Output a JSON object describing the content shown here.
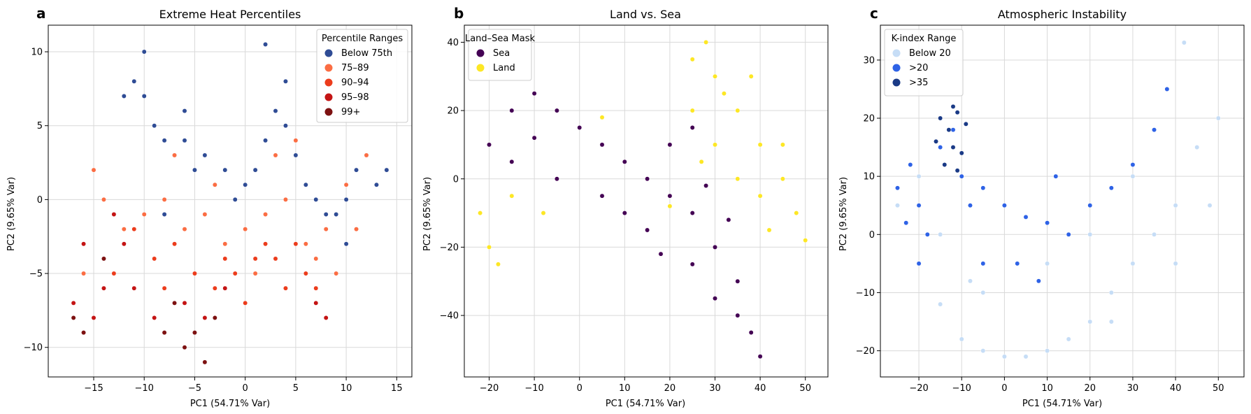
{
  "chart_data": [
    {
      "panel": "a",
      "type": "scatter",
      "title": "Extreme Heat Percentiles",
      "xlabel": "PC1 (54.71% Var)",
      "ylabel": "PC2 (9.65% Var)",
      "xlim": [
        -19.5,
        16.5
      ],
      "ylim": [
        -12,
        11.8
      ],
      "xticks": [
        -15,
        -10,
        -5,
        0,
        5,
        10,
        15
      ],
      "yticks": [
        -10,
        -5,
        0,
        5,
        10
      ],
      "xtick_labels": [
        "−15",
        "−10",
        "−5",
        "0",
        "5",
        "10",
        "15"
      ],
      "ytick_labels": [
        "−10",
        "−5",
        "0",
        "5",
        "10"
      ],
      "grid": true,
      "legend_title": "Percentile Ranges",
      "legend_position": "top-right",
      "series": [
        {
          "name": "Below 75th",
          "color": "#2f4c95",
          "points": [
            [
              -12,
              7
            ],
            [
              -11,
              8
            ],
            [
              -10,
              7
            ],
            [
              -9,
              5
            ],
            [
              -8,
              4
            ],
            [
              -7,
              3
            ],
            [
              -6,
              4
            ],
            [
              -5,
              2
            ],
            [
              -4,
              3
            ],
            [
              -3,
              1
            ],
            [
              -2,
              2
            ],
            [
              -1,
              0
            ],
            [
              0,
              1
            ],
            [
              1,
              2
            ],
            [
              2,
              4
            ],
            [
              3,
              6
            ],
            [
              4,
              5
            ],
            [
              5,
              3
            ],
            [
              6,
              1
            ],
            [
              7,
              0
            ],
            [
              8,
              -1
            ],
            [
              9,
              -1
            ],
            [
              10,
              0
            ],
            [
              11,
              2
            ],
            [
              12,
              3
            ],
            [
              13,
              1
            ],
            [
              14,
              2
            ],
            [
              -10,
              10
            ],
            [
              -8,
              -1
            ],
            [
              -13,
              -1
            ],
            [
              2,
              10.5
            ],
            [
              -6,
              6
            ],
            [
              4,
              8
            ],
            [
              10,
              -3
            ]
          ]
        },
        {
          "name": "75–89",
          "color": "#fb6d43",
          "points": [
            [
              -15,
              2
            ],
            [
              -16,
              -5
            ],
            [
              -14,
              0
            ],
            [
              -12,
              -2
            ],
            [
              -10,
              -1
            ],
            [
              -8,
              0
            ],
            [
              -6,
              -2
            ],
            [
              -4,
              -1
            ],
            [
              -2,
              -3
            ],
            [
              0,
              -2
            ],
            [
              2,
              -1
            ],
            [
              4,
              0
            ],
            [
              6,
              -3
            ],
            [
              8,
              -2
            ],
            [
              10,
              1
            ],
            [
              12,
              3
            ],
            [
              5,
              4
            ],
            [
              3,
              3
            ],
            [
              -7,
              3
            ],
            [
              1,
              -5
            ],
            [
              7,
              -4
            ],
            [
              9,
              -5
            ],
            [
              -3,
              1
            ],
            [
              11,
              -2
            ]
          ]
        },
        {
          "name": "90–94",
          "color": "#ec3c1c",
          "points": [
            [
              -11,
              -2
            ],
            [
              -9,
              -4
            ],
            [
              -7,
              -3
            ],
            [
              -5,
              -5
            ],
            [
              -3,
              -6
            ],
            [
              -1,
              -5
            ],
            [
              1,
              -4
            ],
            [
              3,
              -4
            ],
            [
              5,
              -3
            ],
            [
              6,
              -5
            ],
            [
              -13,
              -5
            ],
            [
              -8,
              -6
            ],
            [
              0,
              -7
            ],
            [
              2,
              -3
            ],
            [
              4,
              -6
            ],
            [
              7,
              -6
            ],
            [
              -2,
              -4
            ]
          ]
        },
        {
          "name": "95–98",
          "color": "#c41414",
          "points": [
            [
              -17,
              -7
            ],
            [
              -15,
              -8
            ],
            [
              -14,
              -6
            ],
            [
              -13,
              -1
            ],
            [
              -12,
              -3
            ],
            [
              -6,
              -7
            ],
            [
              -4,
              -8
            ],
            [
              -2,
              -6
            ],
            [
              7,
              -7
            ],
            [
              8,
              -8
            ],
            [
              -9,
              -8
            ],
            [
              -16,
              -3
            ],
            [
              -11,
              -6
            ]
          ]
        },
        {
          "name": "99+",
          "color": "#7d1111",
          "points": [
            [
              -17,
              -8
            ],
            [
              -16,
              -9
            ],
            [
              -8,
              -9
            ],
            [
              -6,
              -10
            ],
            [
              -4,
              -11
            ],
            [
              -5,
              -9
            ],
            [
              -14,
              -4
            ],
            [
              -7,
              -7
            ],
            [
              -3,
              -8
            ]
          ]
        }
      ]
    },
    {
      "panel": "b",
      "type": "scatter",
      "title": "Land vs. Sea",
      "xlabel": "PC1 (54.71% Var)",
      "ylabel": "PC2 (9.65% Var)",
      "xlim": [
        -25.5,
        55
      ],
      "ylim": [
        -58,
        45
      ],
      "xticks": [
        -20,
        -10,
        0,
        10,
        20,
        30,
        40,
        50
      ],
      "yticks": [
        -40,
        -20,
        0,
        20,
        40
      ],
      "xtick_labels": [
        "−20",
        "−10",
        "0",
        "10",
        "20",
        "30",
        "40",
        "50"
      ],
      "ytick_labels": [
        "−40",
        "−20",
        "0",
        "20",
        "40"
      ],
      "grid": true,
      "legend_title": "Land–Sea Mask",
      "legend_position": "top-left",
      "series": [
        {
          "name": "Sea",
          "color": "#440154",
          "points": [
            [
              -20,
              10
            ],
            [
              -15,
              20
            ],
            [
              -10,
              25
            ],
            [
              -5,
              20
            ],
            [
              0,
              15
            ],
            [
              5,
              10
            ],
            [
              10,
              5
            ],
            [
              15,
              0
            ],
            [
              20,
              -5
            ],
            [
              25,
              -10
            ],
            [
              30,
              -20
            ],
            [
              35,
              -30
            ],
            [
              38,
              -45
            ],
            [
              40,
              -52
            ],
            [
              -15,
              5
            ],
            [
              -5,
              0
            ],
            [
              5,
              -5
            ],
            [
              15,
              -15
            ],
            [
              25,
              -25
            ],
            [
              30,
              -35
            ],
            [
              35,
              -40
            ],
            [
              20,
              10
            ],
            [
              25,
              15
            ],
            [
              -10,
              12
            ],
            [
              10,
              -10
            ],
            [
              18,
              -22
            ],
            [
              28,
              -2
            ],
            [
              33,
              -12
            ]
          ]
        },
        {
          "name": "Land",
          "color": "#fde725",
          "points": [
            [
              -22,
              -10
            ],
            [
              -20,
              -20
            ],
            [
              -18,
              -25
            ],
            [
              -15,
              -5
            ],
            [
              25,
              35
            ],
            [
              28,
              40
            ],
            [
              30,
              30
            ],
            [
              35,
              20
            ],
            [
              40,
              10
            ],
            [
              45,
              0
            ],
            [
              48,
              -10
            ],
            [
              50,
              -18
            ],
            [
              30,
              10
            ],
            [
              35,
              0
            ],
            [
              40,
              -5
            ],
            [
              25,
              20
            ],
            [
              32,
              25
            ],
            [
              45,
              10
            ],
            [
              42,
              -15
            ],
            [
              -8,
              -10
            ],
            [
              5,
              18
            ],
            [
              20,
              -8
            ],
            [
              38,
              30
            ],
            [
              27,
              5
            ]
          ]
        }
      ]
    },
    {
      "panel": "c",
      "type": "scatter",
      "title": "Atmospheric Instability",
      "xlabel": "PC1 (54.71% Var)",
      "ylabel": "PC2 (9.65% Var)",
      "xlim": [
        -29,
        56
      ],
      "ylim": [
        -24.5,
        36
      ],
      "xticks": [
        -20,
        -10,
        0,
        10,
        20,
        30,
        40,
        50
      ],
      "yticks": [
        -20,
        -10,
        0,
        10,
        20,
        30
      ],
      "xtick_labels": [
        "−20",
        "−10",
        "0",
        "10",
        "20",
        "30",
        "40",
        "50"
      ],
      "ytick_labels": [
        "−20",
        "−10",
        "0",
        "10",
        "20",
        "30"
      ],
      "grid": true,
      "legend_title": "K-index Range",
      "legend_position": "top-left",
      "series": [
        {
          "name": "Below 20",
          "color": "#c6ddf6",
          "points": [
            [
              -25,
              5
            ],
            [
              -20,
              -5
            ],
            [
              -15,
              -12
            ],
            [
              -10,
              -18
            ],
            [
              -5,
              -20
            ],
            [
              0,
              -21
            ],
            [
              5,
              -21
            ],
            [
              10,
              -20
            ],
            [
              15,
              -18
            ],
            [
              20,
              -15
            ],
            [
              25,
              -10
            ],
            [
              30,
              -5
            ],
            [
              35,
              0
            ],
            [
              40,
              5
            ],
            [
              45,
              15
            ],
            [
              50,
              20
            ],
            [
              42,
              33
            ],
            [
              38,
              25
            ],
            [
              30,
              10
            ],
            [
              20,
              0
            ],
            [
              10,
              -5
            ],
            [
              -5,
              -10
            ],
            [
              -20,
              10
            ],
            [
              -15,
              0
            ],
            [
              25,
              -15
            ],
            [
              40,
              -5
            ],
            [
              48,
              5
            ],
            [
              35,
              18
            ],
            [
              -8,
              -8
            ]
          ]
        },
        {
          "name": ">20",
          "color": "#2e62e6",
          "points": [
            [
              -25,
              8
            ],
            [
              -22,
              12
            ],
            [
              -20,
              5
            ],
            [
              -18,
              0
            ],
            [
              -15,
              15
            ],
            [
              -12,
              18
            ],
            [
              -10,
              10
            ],
            [
              -8,
              5
            ],
            [
              -5,
              8
            ],
            [
              0,
              5
            ],
            [
              5,
              3
            ],
            [
              10,
              2
            ],
            [
              15,
              0
            ],
            [
              20,
              5
            ],
            [
              25,
              8
            ],
            [
              30,
              12
            ],
            [
              35,
              18
            ],
            [
              38,
              25
            ],
            [
              -20,
              -5
            ],
            [
              -5,
              -5
            ],
            [
              3,
              -5
            ],
            [
              12,
              10
            ],
            [
              -23,
              2
            ],
            [
              8,
              -8
            ]
          ]
        },
        {
          "name": ">35",
          "color": "#1a3a86",
          "points": [
            [
              -15,
              20
            ],
            [
              -13,
              18
            ],
            [
              -11,
              21
            ],
            [
              -12,
              15
            ],
            [
              -10,
              14
            ],
            [
              -14,
              12
            ],
            [
              -16,
              16
            ],
            [
              -9,
              19
            ],
            [
              -12,
              22
            ],
            [
              -11,
              11
            ]
          ]
        }
      ]
    }
  ]
}
